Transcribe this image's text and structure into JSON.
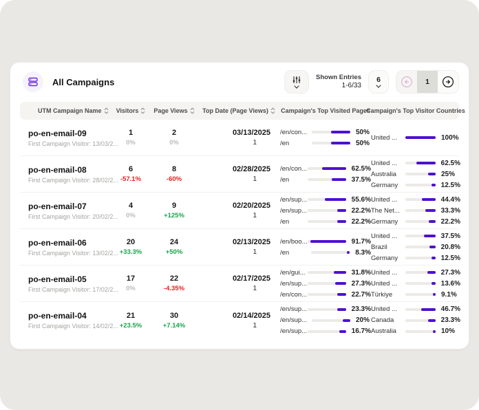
{
  "colors": {
    "accent": "#6d28d9",
    "bar_fill": "#4d10d2",
    "positive": "#17a449",
    "negative": "#ee1c1c",
    "neutral": "#bdbcb9"
  },
  "header": {
    "title": "All Campaigns"
  },
  "toolbar": {
    "shown_entries_label": "Shown Entries",
    "shown_entries_value": "1-6/33",
    "page_size": "6",
    "current_page": "1"
  },
  "table": {
    "columns": [
      {
        "label": "UTM Campaign Name",
        "sortable": true
      },
      {
        "label": "Visitors",
        "sortable": true
      },
      {
        "label": "Page Views",
        "sortable": true
      },
      {
        "label": "Top Date (Page Views)",
        "sortable": true
      },
      {
        "label": "Campaign's Top Visited Pages",
        "sortable": false
      },
      {
        "label": "Campaign's Top Visitor Countries",
        "sortable": false
      }
    ],
    "rows": [
      {
        "name": "po-en-email-09",
        "subtitle": "First Campaign Visitor: 13/03/2...",
        "visitors": {
          "value": "1",
          "change": "0%",
          "trend": "neutral"
        },
        "page_views": {
          "value": "2",
          "change": "0%",
          "trend": "neutral"
        },
        "top_date": {
          "value": "03/13/2025",
          "count": "1"
        },
        "top_pages": [
          {
            "label": "/en/con...",
            "pct": "50%",
            "value": 50
          },
          {
            "label": "/en",
            "pct": "50%",
            "value": 50
          }
        ],
        "top_countries": [
          {
            "label": "United ...",
            "pct": "100%",
            "value": 100
          }
        ]
      },
      {
        "name": "po-en-email-08",
        "subtitle": "First Campaign Visitor: 28/02/2...",
        "visitors": {
          "value": "6",
          "change": "-57.1%",
          "trend": "negative"
        },
        "page_views": {
          "value": "8",
          "change": "-60%",
          "trend": "negative"
        },
        "top_date": {
          "value": "02/28/2025",
          "count": "1"
        },
        "top_pages": [
          {
            "label": "/en/con...",
            "pct": "62.5%",
            "value": 62.5
          },
          {
            "label": "/en",
            "pct": "37.5%",
            "value": 37.5
          }
        ],
        "top_countries": [
          {
            "label": "United ...",
            "pct": "62.5%",
            "value": 62.5
          },
          {
            "label": "Australia",
            "pct": "25%",
            "value": 25
          },
          {
            "label": "Germany",
            "pct": "12.5%",
            "value": 12.5
          }
        ]
      },
      {
        "name": "po-en-email-07",
        "subtitle": "First Campaign Visitor: 20/02/2...",
        "visitors": {
          "value": "4",
          "change": "0%",
          "trend": "neutral"
        },
        "page_views": {
          "value": "9",
          "change": "+125%",
          "trend": "positive"
        },
        "top_date": {
          "value": "02/20/2025",
          "count": "1"
        },
        "top_pages": [
          {
            "label": "/en/sup...",
            "pct": "55.6%",
            "value": 55.6
          },
          {
            "label": "/en/sup...",
            "pct": "22.2%",
            "value": 22.2
          },
          {
            "label": "/en",
            "pct": "22.2%",
            "value": 22.2
          }
        ],
        "top_countries": [
          {
            "label": "United ...",
            "pct": "44.4%",
            "value": 44.4
          },
          {
            "label": "The Net...",
            "pct": "33.3%",
            "value": 33.3
          },
          {
            "label": "Germany",
            "pct": "22.2%",
            "value": 22.2
          }
        ]
      },
      {
        "name": "po-en-email-06",
        "subtitle": "First Campaign Visitor: 13/02/2...",
        "visitors": {
          "value": "20",
          "change": "+33.3%",
          "trend": "positive"
        },
        "page_views": {
          "value": "24",
          "change": "+50%",
          "trend": "positive"
        },
        "top_date": {
          "value": "02/13/2025",
          "count": "1"
        },
        "top_pages": [
          {
            "label": "/en/boo...",
            "pct": "91.7%",
            "value": 91.7
          },
          {
            "label": "/en",
            "pct": "8.3%",
            "value": 8.3
          }
        ],
        "top_countries": [
          {
            "label": "United ...",
            "pct": "37.5%",
            "value": 37.5
          },
          {
            "label": "Brazil",
            "pct": "20.8%",
            "value": 20.8
          },
          {
            "label": "Germany",
            "pct": "12.5%",
            "value": 12.5
          }
        ]
      },
      {
        "name": "po-en-email-05",
        "subtitle": "First Campaign Visitor: 17/02/2...",
        "visitors": {
          "value": "17",
          "change": "0%",
          "trend": "neutral"
        },
        "page_views": {
          "value": "22",
          "change": "-4.35%",
          "trend": "negative"
        },
        "top_date": {
          "value": "02/17/2025",
          "count": "1"
        },
        "top_pages": [
          {
            "label": "/en/gui...",
            "pct": "31.8%",
            "value": 31.8
          },
          {
            "label": "/en/sup...",
            "pct": "27.3%",
            "value": 27.3
          },
          {
            "label": "/en/con...",
            "pct": "22.7%",
            "value": 22.7
          }
        ],
        "top_countries": [
          {
            "label": "United ...",
            "pct": "27.3%",
            "value": 27.3
          },
          {
            "label": "United ...",
            "pct": "13.6%",
            "value": 13.6
          },
          {
            "label": "Türkiye",
            "pct": "9.1%",
            "value": 9.1
          }
        ]
      },
      {
        "name": "po-en-email-04",
        "subtitle": "First Campaign Visitor: 14/02/2...",
        "visitors": {
          "value": "21",
          "change": "+23.5%",
          "trend": "positive"
        },
        "page_views": {
          "value": "30",
          "change": "+7.14%",
          "trend": "positive"
        },
        "top_date": {
          "value": "02/14/2025",
          "count": "1"
        },
        "top_pages": [
          {
            "label": "/en/sup...",
            "pct": "23.3%",
            "value": 23.3
          },
          {
            "label": "/en/sup...",
            "pct": "20%",
            "value": 20
          },
          {
            "label": "/en/sup...",
            "pct": "16.7%",
            "value": 16.7
          }
        ],
        "top_countries": [
          {
            "label": "United ...",
            "pct": "46.7%",
            "value": 46.7
          },
          {
            "label": "Canada",
            "pct": "23.3%",
            "value": 23.3
          },
          {
            "label": "Australia",
            "pct": "10%",
            "value": 10
          }
        ]
      }
    ]
  }
}
